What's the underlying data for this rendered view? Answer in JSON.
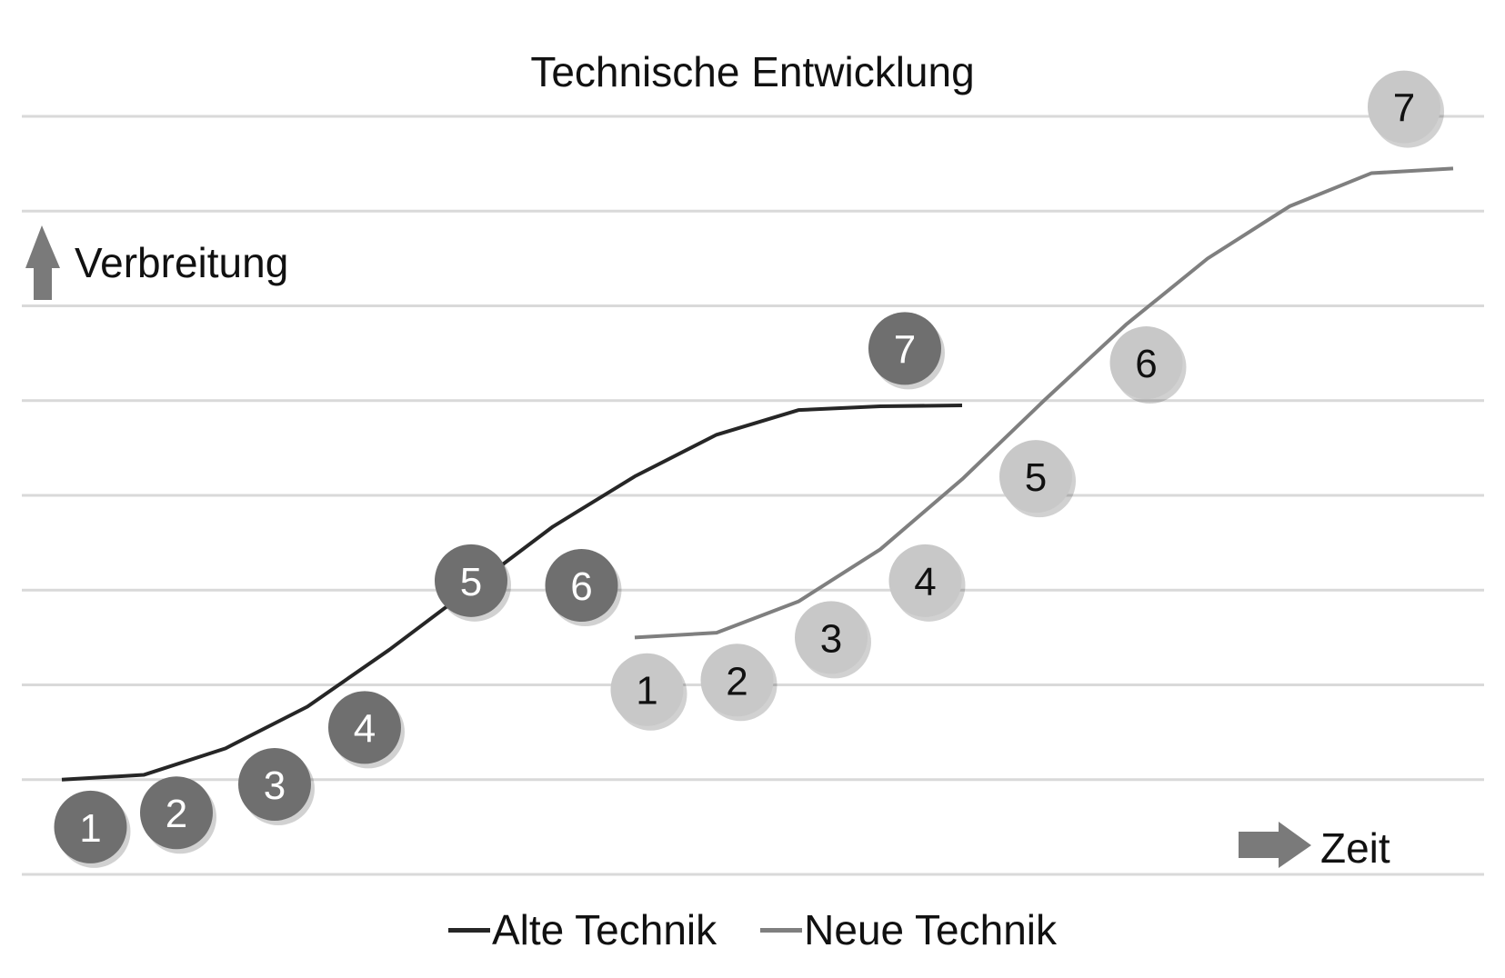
{
  "chart_data": {
    "type": "line",
    "title": "Technische Entwicklung",
    "ylabel": "Verbreitung",
    "xlabel": "Zeit",
    "ylim": [
      0,
      8
    ],
    "grid": true,
    "legend_position": "bottom",
    "series": [
      {
        "name": "Alte Technik",
        "color": "#262626",
        "marker_color": "#6f6f6f",
        "marker_text_color": "#ffffff",
        "x": [
          1,
          2,
          3,
          4,
          5,
          6,
          7,
          8,
          9,
          10,
          11,
          12
        ],
        "y": [
          1.0,
          1.05,
          1.33,
          1.77,
          2.37,
          3.02,
          3.67,
          4.2,
          4.64,
          4.9,
          4.94,
          4.95
        ],
        "markers": [
          {
            "label": "1",
            "x": 1.35,
            "y": 0.5
          },
          {
            "label": "2",
            "x": 2.4,
            "y": 0.65
          },
          {
            "label": "3",
            "x": 3.6,
            "y": 0.95
          },
          {
            "label": "4",
            "x": 4.7,
            "y": 1.55
          },
          {
            "label": "5",
            "x": 6.0,
            "y": 3.1
          },
          {
            "label": "6",
            "x": 7.35,
            "y": 3.05
          },
          {
            "label": "7",
            "x": 11.3,
            "y": 5.55
          }
        ]
      },
      {
        "name": "Neue Technik",
        "color": "#7f7f7f",
        "marker_color": "#c8c8c8",
        "marker_text_color": "#111111",
        "x": [
          8,
          9,
          10,
          11,
          12,
          13,
          14,
          15,
          16,
          17,
          18
        ],
        "y": [
          2.5,
          2.55,
          2.88,
          3.43,
          4.17,
          5.0,
          5.8,
          6.5,
          7.05,
          7.4,
          7.45
        ],
        "markers": [
          {
            "label": "1",
            "x": 8.15,
            "y": 1.95
          },
          {
            "label": "2",
            "x": 9.25,
            "y": 2.05
          },
          {
            "label": "3",
            "x": 10.4,
            "y": 2.5
          },
          {
            "label": "4",
            "x": 11.55,
            "y": 3.1
          },
          {
            "label": "5",
            "x": 12.9,
            "y": 4.2
          },
          {
            "label": "6",
            "x": 14.25,
            "y": 5.4
          },
          {
            "label": "7",
            "x": 17.4,
            "y": 8.1
          }
        ]
      }
    ]
  }
}
